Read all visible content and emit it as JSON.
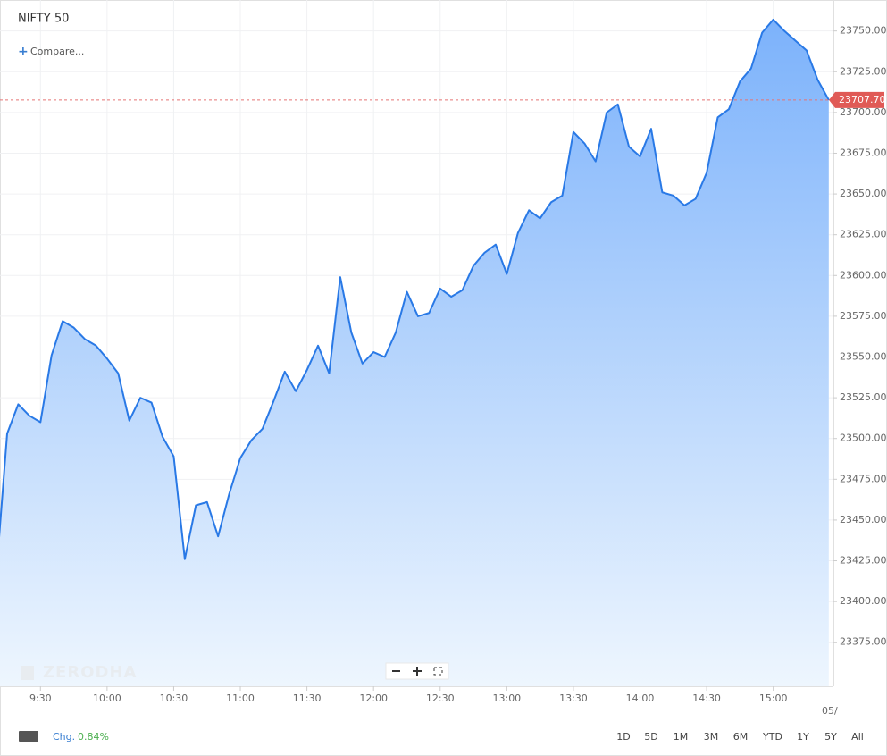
{
  "ui": {
    "compare": "Compare...",
    "watermark": "ZERODHA",
    "date_edge": "05/",
    "change_label": "Chg.",
    "change_value": "0.84%",
    "ranges": [
      "1D",
      "5D",
      "1M",
      "3M",
      "6M",
      "YTD",
      "1Y",
      "5Y",
      "All"
    ]
  },
  "chart_data": {
    "type": "area",
    "title": "NIFTY 50",
    "categories": [
      null,
      null,
      null,
      null,
      "9:30",
      null,
      null,
      null,
      null,
      null,
      "10:00",
      null,
      null,
      null,
      null,
      null,
      "10:30",
      null,
      null,
      null,
      null,
      null,
      "11:00",
      null,
      null,
      null,
      null,
      null,
      "11:30",
      null,
      null,
      null,
      null,
      null,
      "12:00",
      null,
      null,
      null,
      null,
      null,
      "12:30",
      null,
      null,
      null,
      null,
      null,
      "13:00",
      null,
      null,
      null,
      null,
      null,
      "13:30",
      null,
      null,
      null,
      null,
      null,
      "14:00",
      null,
      null,
      null,
      null,
      null,
      "14:30",
      null,
      null,
      null,
      null,
      null,
      "15:00",
      null,
      null,
      null,
      null,
      null
    ],
    "values": [
      23415,
      23503,
      23521,
      23514,
      23510,
      23551,
      23572,
      23568,
      23561,
      23557,
      23549,
      23540,
      23511,
      23525,
      23522,
      23501,
      23489,
      23426,
      23459,
      23461,
      23440,
      23466,
      23488,
      23499,
      23506,
      23523,
      23541,
      23529,
      23542,
      23557,
      23540,
      23599,
      23565,
      23546,
      23553,
      23550,
      23565,
      23590,
      23575,
      23577,
      23592,
      23587,
      23591,
      23606,
      23614,
      23619,
      23601,
      23626,
      23640,
      23635,
      23645,
      23649,
      23688,
      23681,
      23670,
      23700,
      23705,
      23679,
      23673,
      23690,
      23651,
      23649,
      23643,
      23647,
      23663,
      23697,
      23702,
      23719,
      23727,
      23749,
      23757,
      23750,
      23744,
      23738,
      23720,
      23707.7
    ],
    "color": "#2979e6",
    "ylim": [
      23348,
      23769
    ],
    "yticks": [
      {
        "value": 23375,
        "label": "23375.00"
      },
      {
        "value": 23400,
        "label": "23400.00"
      },
      {
        "value": 23425,
        "label": "23425.00"
      },
      {
        "value": 23450,
        "label": "23450.00"
      },
      {
        "value": 23475,
        "label": "23475.00"
      },
      {
        "value": 23500,
        "label": "23500.00"
      },
      {
        "value": 23525,
        "label": "23525.00"
      },
      {
        "value": 23550,
        "label": "23550.00"
      },
      {
        "value": 23575,
        "label": "23575.00"
      },
      {
        "value": 23600,
        "label": "23600.00"
      },
      {
        "value": 23625,
        "label": "23625.00"
      },
      {
        "value": 23650,
        "label": "23650.00"
      },
      {
        "value": 23675,
        "label": "23675.00"
      },
      {
        "value": 23700,
        "label": "23700.00"
      },
      {
        "value": 23725,
        "label": "23725.00"
      },
      {
        "value": 23750,
        "label": "23750.00"
      }
    ],
    "last_price": {
      "value": 23707.7,
      "label": "23707.70"
    },
    "grid": true
  }
}
